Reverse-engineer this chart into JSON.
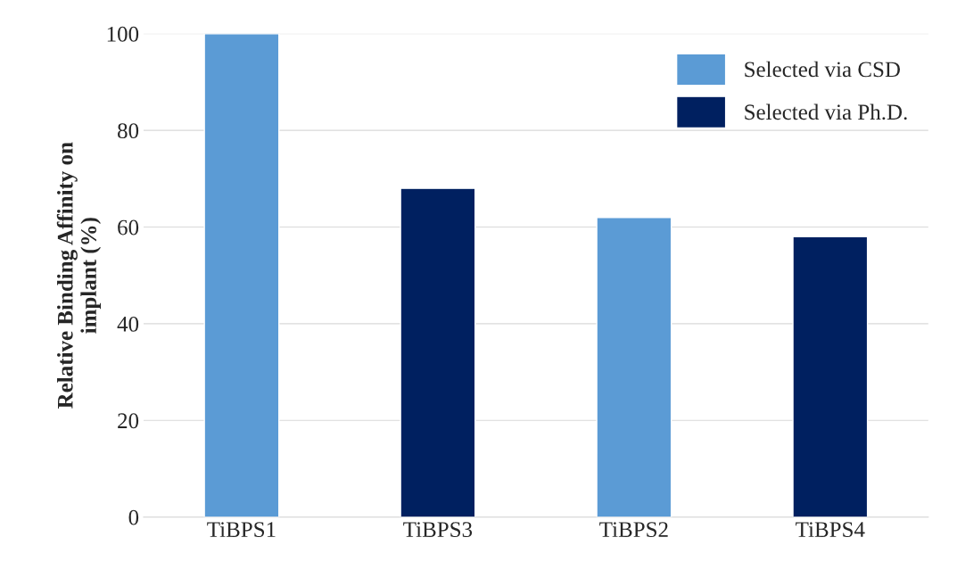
{
  "chart_data": {
    "type": "bar",
    "ylabel": "Relative Binding Affinity on\nimplant (%)",
    "categories": [
      "TiBPS1",
      "TiBPS3",
      "TiBPS2",
      "TiBPS4"
    ],
    "series": [
      {
        "name": "Selected via CSD",
        "color": "#5b9bd5",
        "values": [
          100,
          null,
          62,
          null
        ]
      },
      {
        "name": "Selected via Ph.D.",
        "color": "#002060",
        "values": [
          null,
          68,
          null,
          58
        ]
      }
    ],
    "ylim": [
      0,
      100
    ],
    "yticks": [
      0,
      20,
      40,
      60,
      80,
      100
    ],
    "grid": "y",
    "legend": "top right"
  }
}
